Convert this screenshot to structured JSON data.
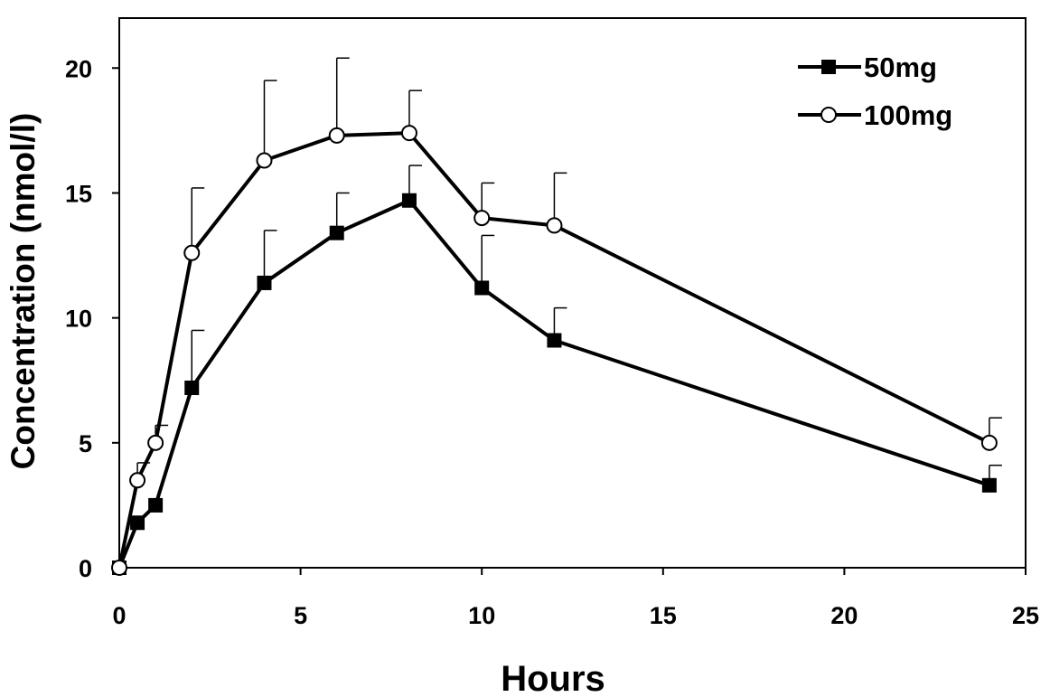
{
  "chart_data": {
    "type": "line",
    "title": "",
    "xlabel": "Hours",
    "ylabel": "Concentration (nmol/l)",
    "xlim": [
      0,
      25
    ],
    "ylim": [
      0,
      22
    ],
    "xticks": [
      0,
      5,
      10,
      15,
      20,
      25
    ],
    "yticks": [
      0,
      5,
      10,
      15,
      20
    ],
    "grid": false,
    "legend_position": "top-right",
    "series": [
      {
        "name": "50mg",
        "marker": "filled-square",
        "x": [
          0,
          0.5,
          1,
          2,
          4,
          6,
          8,
          10,
          12,
          24
        ],
        "y": [
          0,
          1.8,
          2.5,
          7.2,
          11.4,
          13.4,
          14.7,
          11.2,
          9.1,
          3.3
        ],
        "error": [
          0,
          0,
          0,
          2.3,
          2.1,
          1.6,
          1.4,
          2.1,
          1.3,
          0.8
        ]
      },
      {
        "name": "100mg",
        "marker": "open-circle",
        "x": [
          0,
          0.5,
          1,
          2,
          4,
          6,
          8,
          10,
          12,
          24
        ],
        "y": [
          0,
          3.5,
          5.0,
          12.6,
          16.3,
          17.3,
          17.4,
          14.0,
          13.7,
          5.0
        ],
        "error": [
          0,
          0.7,
          0.7,
          2.6,
          3.2,
          3.1,
          1.7,
          1.4,
          2.1,
          1.0
        ]
      }
    ]
  }
}
